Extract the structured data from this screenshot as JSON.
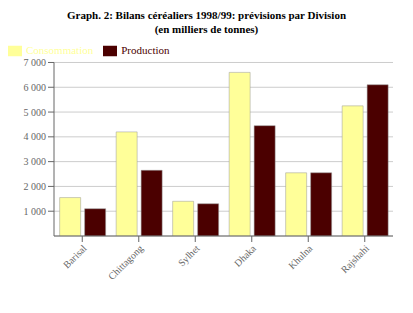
{
  "chart_data": {
    "type": "bar",
    "title": "Graph. 2: Bilans céréaliers 1998/99: prévisions par Division",
    "subtitle": "(en milliers de tonnes)",
    "categories": [
      "Barisal",
      "Chittagong",
      "Sylhet",
      "Dhaka",
      "Khulna",
      "Rajshahi"
    ],
    "series": [
      {
        "name": "Consommation",
        "color": "#FFFF99",
        "values": [
          1550,
          4200,
          1400,
          6600,
          2550,
          5250
        ]
      },
      {
        "name": "Production",
        "color": "#4B0000",
        "values": [
          1100,
          2650,
          1300,
          4450,
          2550,
          6100
        ]
      }
    ],
    "ylim": [
      0,
      7000
    ],
    "yticks": [
      {
        "value": 1000,
        "label": "1 000"
      },
      {
        "value": 2000,
        "label": "2 000"
      },
      {
        "value": 3000,
        "label": "3 000"
      },
      {
        "value": 4000,
        "label": "4 000"
      },
      {
        "value": 5000,
        "label": "5 000"
      },
      {
        "value": 6000,
        "label": "6 000"
      },
      {
        "value": 7000,
        "label": "7 000"
      }
    ],
    "grid": true,
    "legend": "upper left"
  }
}
